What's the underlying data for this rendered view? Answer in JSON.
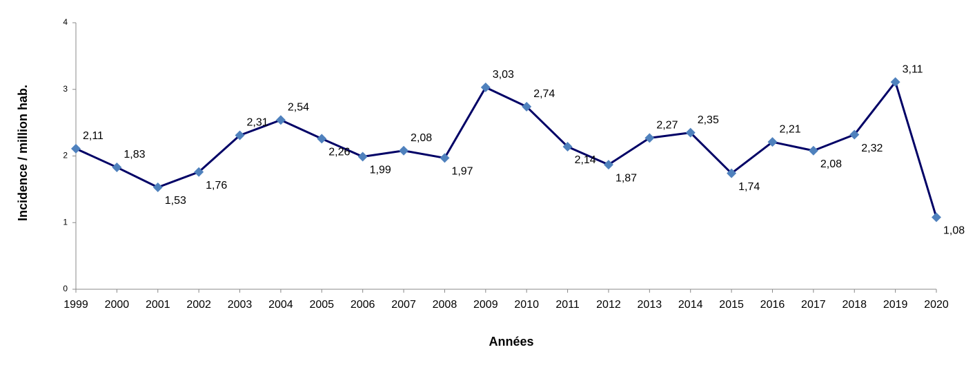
{
  "chart_data": {
    "type": "line",
    "y_label": "Incidence / million hab.",
    "x_label": "Années",
    "categories": [
      "1999",
      "2000",
      "2001",
      "2002",
      "2003",
      "2004",
      "2005",
      "2006",
      "2007",
      "2008",
      "2009",
      "2010",
      "2011",
      "2012",
      "2013",
      "2014",
      "2015",
      "2016",
      "2017",
      "2018",
      "2019",
      "2020"
    ],
    "values": [
      2.11,
      1.83,
      1.53,
      1.76,
      2.31,
      2.54,
      2.26,
      1.99,
      2.08,
      1.97,
      3.03,
      2.74,
      2.14,
      1.87,
      2.27,
      2.35,
      1.74,
      2.21,
      2.08,
      2.32,
      3.11,
      1.08
    ],
    "value_labels": [
      "2,11",
      "1,83",
      "1,53",
      "1,76",
      "2,31",
      "2,54",
      "2,26",
      "1,99",
      "2,08",
      "1,97",
      "3,03",
      "2,74",
      "2,14",
      "1,87",
      "2,27",
      "2,35",
      "1,74",
      "2,21",
      "2,08",
      "2,32",
      "3,11",
      "1,08"
    ],
    "color": "#000066",
    "marker_color": "#4f81bd",
    "ylim": [
      0,
      4
    ],
    "yticks": [
      0,
      1,
      2,
      3,
      4
    ],
    "grid": false
  }
}
